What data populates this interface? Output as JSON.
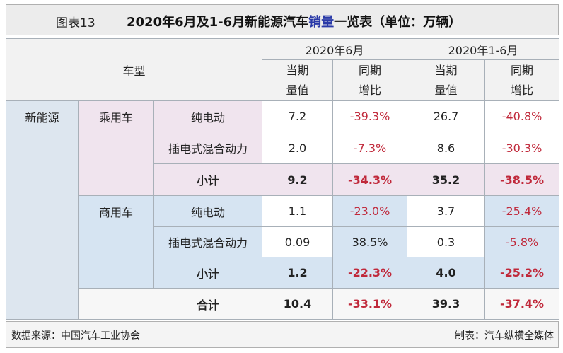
{
  "header": {
    "label": "图表13",
    "title": [
      "2020年6月及1-6月新能源汽车",
      "销量",
      "一览表（单位：万辆）"
    ]
  },
  "table": {
    "corner": "车型",
    "periods": [
      "2020年6月",
      "2020年1-6月"
    ],
    "columns": [
      [
        "当期",
        "量值"
      ],
      [
        "同期",
        "增比"
      ],
      [
        "当期",
        "量值"
      ],
      [
        "同期",
        "增比"
      ]
    ],
    "category": "新能源",
    "groups": [
      {
        "name": "乘用车",
        "rows": [
          {
            "type": "纯电动",
            "values": [
              "7.2",
              "-39.3%",
              "26.7",
              "-40.8%"
            ]
          },
          {
            "type": "插电式混合动力",
            "values": [
              "2.0",
              "-7.3%",
              "8.6",
              "-30.3%"
            ]
          }
        ],
        "subtotal": {
          "label": "小计",
          "values": [
            "9.2",
            "-34.3%",
            "35.2",
            "-38.5%"
          ]
        }
      },
      {
        "name": "商用车",
        "rows": [
          {
            "type": "纯电动",
            "values": [
              "1.1",
              "-23.0%",
              "3.7",
              "-25.4%"
            ]
          },
          {
            "type": "插电式混合动力",
            "values": [
              "0.09",
              "38.5%",
              "0.3",
              "-5.8%"
            ]
          }
        ],
        "subtotal": {
          "label": "小计",
          "values": [
            "1.2",
            "-22.3%",
            "4.0",
            "-25.2%"
          ]
        }
      }
    ],
    "total": {
      "label": "合计",
      "values": [
        "10.4",
        "-33.1%",
        "39.3",
        "-37.4%"
      ]
    }
  },
  "footer": {
    "source": "数据来源：中国汽车工业协会",
    "credit": "制表：汽车纵横全媒体"
  }
}
